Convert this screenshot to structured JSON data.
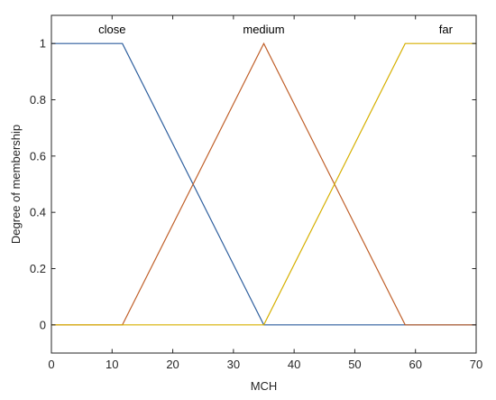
{
  "chart_data": {
    "type": "line",
    "xlabel": "MCH",
    "ylabel": "Degree of membership",
    "xlim": [
      0,
      70
    ],
    "ylim": [
      -0.1,
      1.1
    ],
    "xticks": [
      0,
      10,
      20,
      30,
      40,
      50,
      60,
      70
    ],
    "yticks": [
      0,
      0.2,
      0.4,
      0.6,
      0.8,
      1
    ],
    "grid": false,
    "series": [
      {
        "name": "close",
        "color": "#2e5f9e",
        "x": [
          0,
          11.7,
          35,
          70
        ],
        "y": [
          1,
          1,
          0,
          0
        ],
        "label_x": 10
      },
      {
        "name": "medium",
        "color": "#c0602a",
        "x": [
          0,
          11.7,
          35,
          58.3,
          70
        ],
        "y": [
          0,
          0,
          1,
          0,
          0
        ],
        "label_x": 35
      },
      {
        "name": "far",
        "color": "#d6b000",
        "x": [
          0,
          35,
          58.3,
          70
        ],
        "y": [
          0,
          0,
          1,
          1
        ],
        "label_x": 65
      }
    ]
  }
}
